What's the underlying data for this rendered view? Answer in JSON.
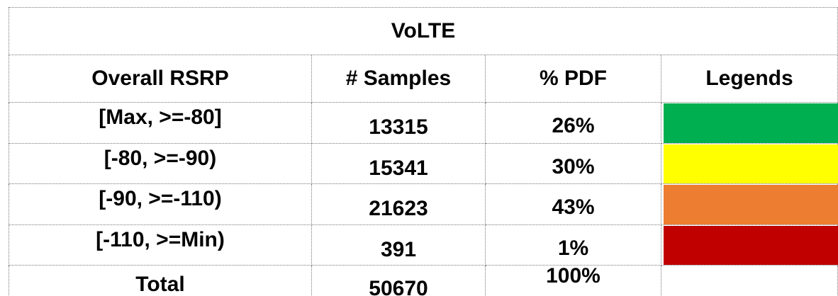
{
  "table": {
    "title": "VoLTE",
    "headers": [
      "Overall RSRP",
      "# Samples",
      "% PDF",
      "Legends"
    ],
    "rows": [
      {
        "range": "[Max, >=-80]",
        "samples": "13315",
        "pdf": "26%",
        "color": "#00b050"
      },
      {
        "range": "[-80, >=-90)",
        "samples": "15341",
        "pdf": "30%",
        "color": "#ffff00"
      },
      {
        "range": "[-90, >=-110)",
        "samples": "21623",
        "pdf": "43%",
        "color": "#ed7d31"
      },
      {
        "range": "[-110, >=Min)",
        "samples": "391",
        "pdf": "1%",
        "color": "#c00000"
      }
    ],
    "total": {
      "label": "Total",
      "samples": "50670",
      "pdf": "100%"
    }
  }
}
